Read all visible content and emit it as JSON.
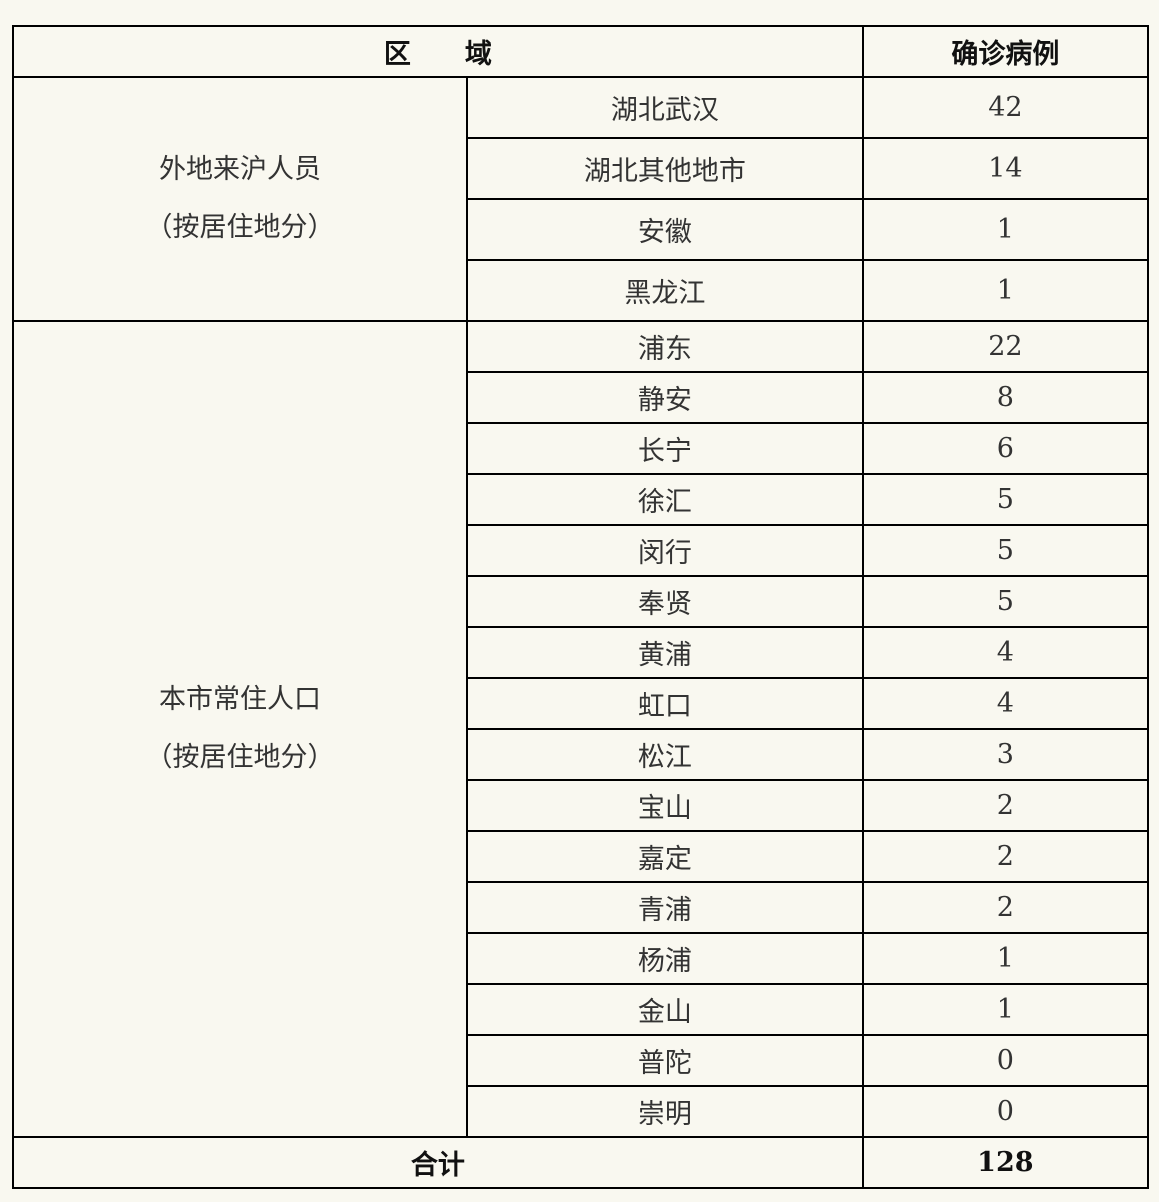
{
  "header": {
    "region": "区　　域",
    "cases": "确诊病例"
  },
  "groups": [
    {
      "label_line1": "外地来沪人员",
      "label_line2": "（按居住地分）",
      "rows": [
        [
          "湖北武汉",
          "42"
        ],
        [
          "湖北其他地市",
          "14"
        ],
        [
          "安徽",
          "1"
        ],
        [
          "黑龙江",
          "1"
        ]
      ]
    },
    {
      "label_line1": "本市常住人口",
      "label_line2": "（按居住地分）",
      "rows": [
        [
          "浦东",
          "22"
        ],
        [
          "静安",
          "8"
        ],
        [
          "长宁",
          "6"
        ],
        [
          "徐汇",
          "5"
        ],
        [
          "闵行",
          "5"
        ],
        [
          "奉贤",
          "5"
        ],
        [
          "黄浦",
          "4"
        ],
        [
          "虹口",
          "4"
        ],
        [
          "松江",
          "3"
        ],
        [
          "宝山",
          "2"
        ],
        [
          "嘉定",
          "2"
        ],
        [
          "青浦",
          "2"
        ],
        [
          "杨浦",
          "1"
        ],
        [
          "金山",
          "1"
        ],
        [
          "普陀",
          "0"
        ],
        [
          "崇明",
          "0"
        ]
      ]
    }
  ],
  "total": {
    "label": "合计",
    "value": "128"
  }
}
